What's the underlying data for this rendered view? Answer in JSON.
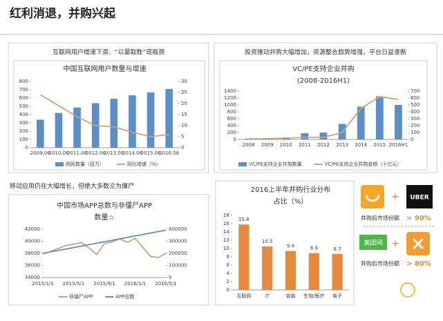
{
  "title": "红利消退，并购兴起",
  "panels": [
    "互联网用户增速下滑，“以量取胜”现瓶颈",
    "投资推动并购大幅增加，资源整合趋势增强，平台日益垄断",
    "移动应用仍在大幅增长，但绝大多数沦为僵尸"
  ],
  "right_panel": {
    "logos": [
      "UBER",
      "美团网"
    ],
    "items": [
      {
        "text": "并购后市场份额",
        "share": "> 90%"
      },
      {
        "text": "并购后市场份额",
        "share": "> 80%"
      }
    ]
  },
  "chart_data": [
    {
      "type": "combo",
      "title": "中国互联网用户数量与增速",
      "categories": [
        "2009.06",
        "2010.06",
        "2011.06",
        "2012.06",
        "2013.06",
        "2014.06",
        "2015.06",
        "2016.06"
      ],
      "series": [
        {
          "name": "网民数量（百万）",
          "color": "#5b8fc9",
          "kind": "bar",
          "values": [
            338,
            420,
            485,
            538,
            591,
            632,
            668,
            710
          ]
        },
        {
          "name": "同比增速（%）",
          "color": "#c9a57a",
          "kind": "line",
          "axis": "y2",
          "values": [
            24,
            19,
            14,
            10,
            9.5,
            7,
            5,
            6
          ]
        }
      ],
      "ylim": [
        0,
        800
      ],
      "yticks": [
        0,
        100,
        200,
        300,
        400,
        500,
        600,
        700,
        800
      ],
      "y2lim": [
        0,
        30
      ],
      "y2ticks": [
        0,
        5,
        10,
        15,
        20,
        25,
        30
      ],
      "legend": "bottom"
    },
    {
      "type": "combo",
      "title": "VC/PE支持企业并购",
      "subtitle": "(2008-2016H1)",
      "categories": [
        "2008",
        "2009",
        "2010",
        "2011",
        "2012",
        "2013",
        "2014",
        "2015",
        "2016H1"
      ],
      "series": [
        {
          "name": "VC/PE支持企业并购数量",
          "color": "#5b8fc9",
          "kind": "bar",
          "values": [
            20,
            40,
            60,
            180,
            200,
            450,
            950,
            1250,
            1000
          ]
        },
        {
          "name": "VC/PE支持企业并购金额（十亿元）",
          "color": "#c9a57a",
          "kind": "line",
          "axis": "y2",
          "values": [
            10,
            10,
            20,
            30,
            30,
            100,
            450,
            620,
            580
          ]
        }
      ],
      "ylim": [
        0,
        1400
      ],
      "yticks": [
        0,
        200,
        400,
        600,
        800,
        1000,
        1200,
        1400
      ],
      "y2lim": [
        0,
        700
      ],
      "y2ticks": [
        0,
        100,
        200,
        300,
        400,
        500,
        600,
        700
      ],
      "legend": "bottom"
    },
    {
      "type": "line",
      "title": [
        "中国市场APP总数与非僵尸APP",
        "数量☆"
      ],
      "categories": [
        "2015/1/1",
        null,
        null,
        null,
        "2015/5/1",
        null,
        null,
        null,
        "2015/9/1",
        null,
        null,
        null,
        "2016/1/1",
        null,
        null,
        null,
        "2016/5/1"
      ],
      "series": [
        {
          "name": "非僵尸APP",
          "color": "#c9a57a",
          "values": [
            37900,
            38300,
            38800,
            39300,
            39500,
            39800,
            38900,
            37800,
            39600,
            39900,
            40400,
            39800,
            40500,
            39000,
            37500,
            37300,
            38000
          ]
        },
        {
          "name": "APP总数",
          "color": "#5b8fc9",
          "axis": "y2",
          "values": [
            200000,
            212000,
            224000,
            236000,
            248000,
            260000,
            272000,
            284000,
            296000,
            308000,
            320000,
            332000,
            344000,
            356000,
            368000,
            380000,
            392000
          ]
        }
      ],
      "ylim": [
        34000,
        42000
      ],
      "yticks": [
        34000,
        36000,
        38000,
        40000,
        42000
      ],
      "y2lim": [
        0,
        400000
      ],
      "y2ticks": [
        0,
        100000,
        200000,
        300000,
        400000
      ],
      "legend": "bottom"
    },
    {
      "type": "bar",
      "title": [
        "2016上半年并购行业分布",
        "占比（%）"
      ],
      "categories": [
        "互联网",
        "IT",
        "金融",
        "生物/医疗",
        "电子"
      ],
      "values": [
        15.8,
        10.5,
        9.4,
        8.9,
        8.7
      ],
      "color": "#e8883a",
      "ylim": [
        0,
        18
      ],
      "yticks": [
        0,
        2,
        4,
        6,
        8,
        10,
        12,
        14,
        16,
        18
      ]
    }
  ]
}
